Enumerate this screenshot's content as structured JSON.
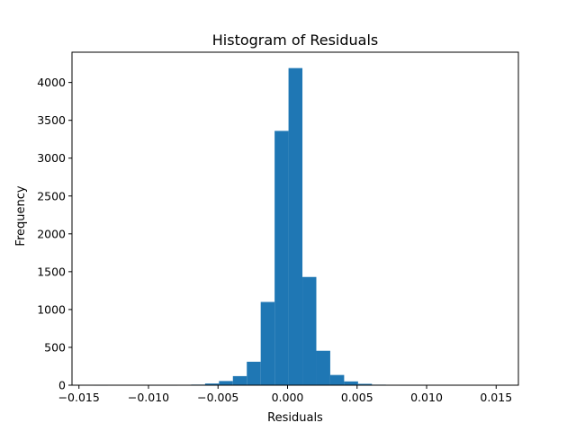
{
  "chart_data": {
    "type": "bar",
    "title": "Histogram of Residuals",
    "xlabel": "Residuals",
    "ylabel": "Frequency",
    "xlim": [
      -0.0155,
      0.0166
    ],
    "ylim": [
      0,
      4400
    ],
    "xticks": [
      -0.015,
      -0.01,
      -0.005,
      0.0,
      0.005,
      0.01,
      0.015
    ],
    "xtick_labels": [
      "−0.015",
      "−0.010",
      "−0.005",
      "0.000",
      "0.005",
      "0.010",
      "0.015"
    ],
    "yticks": [
      0,
      500,
      1000,
      1500,
      2000,
      2500,
      3000,
      3500,
      4000
    ],
    "ytick_labels": [
      "0",
      "500",
      "1000",
      "1500",
      "2000",
      "2500",
      "3000",
      "3500",
      "4000"
    ],
    "grid": false,
    "color": "#1f77b4",
    "bins": [
      {
        "x0": -0.01393,
        "x1": -0.01293,
        "count": 1
      },
      {
        "x0": -0.01293,
        "x1": -0.01193,
        "count": 0
      },
      {
        "x0": -0.01193,
        "x1": -0.01093,
        "count": 0
      },
      {
        "x0": -0.01093,
        "x1": -0.00993,
        "count": 0
      },
      {
        "x0": -0.00993,
        "x1": -0.00893,
        "count": 1
      },
      {
        "x0": -0.00893,
        "x1": -0.00793,
        "count": 1
      },
      {
        "x0": -0.00793,
        "x1": -0.00693,
        "count": 2
      },
      {
        "x0": -0.00693,
        "x1": -0.00593,
        "count": 8
      },
      {
        "x0": -0.00593,
        "x1": -0.00493,
        "count": 22
      },
      {
        "x0": -0.00493,
        "x1": -0.00393,
        "count": 55
      },
      {
        "x0": -0.00393,
        "x1": -0.00293,
        "count": 120
      },
      {
        "x0": -0.00293,
        "x1": -0.00193,
        "count": 310
      },
      {
        "x0": -0.00193,
        "x1": -0.00093,
        "count": 1100
      },
      {
        "x0": -0.00093,
        "x1": 7e-05,
        "count": 3360
      },
      {
        "x0": 7e-05,
        "x1": 0.00107,
        "count": 4190
      },
      {
        "x0": 0.00107,
        "x1": 0.00207,
        "count": 1430
      },
      {
        "x0": 0.00207,
        "x1": 0.00307,
        "count": 455
      },
      {
        "x0": 0.00307,
        "x1": 0.00407,
        "count": 135
      },
      {
        "x0": 0.00407,
        "x1": 0.00507,
        "count": 50
      },
      {
        "x0": 0.00507,
        "x1": 0.00607,
        "count": 18
      },
      {
        "x0": 0.00607,
        "x1": 0.00707,
        "count": 7
      },
      {
        "x0": 0.00707,
        "x1": 0.00807,
        "count": 3
      },
      {
        "x0": 0.00807,
        "x1": 0.00907,
        "count": 1
      },
      {
        "x0": 0.00907,
        "x1": 0.01007,
        "count": 1
      },
      {
        "x0": 0.01007,
        "x1": 0.01107,
        "count": 0
      },
      {
        "x0": 0.01107,
        "x1": 0.01207,
        "count": 0
      },
      {
        "x0": 0.01207,
        "x1": 0.01307,
        "count": 0
      },
      {
        "x0": 0.01307,
        "x1": 0.01407,
        "count": 0
      },
      {
        "x0": 0.01407,
        "x1": 0.01507,
        "count": 0
      },
      {
        "x0": 0.01507,
        "x1": 0.01607,
        "count": 1
      }
    ]
  }
}
